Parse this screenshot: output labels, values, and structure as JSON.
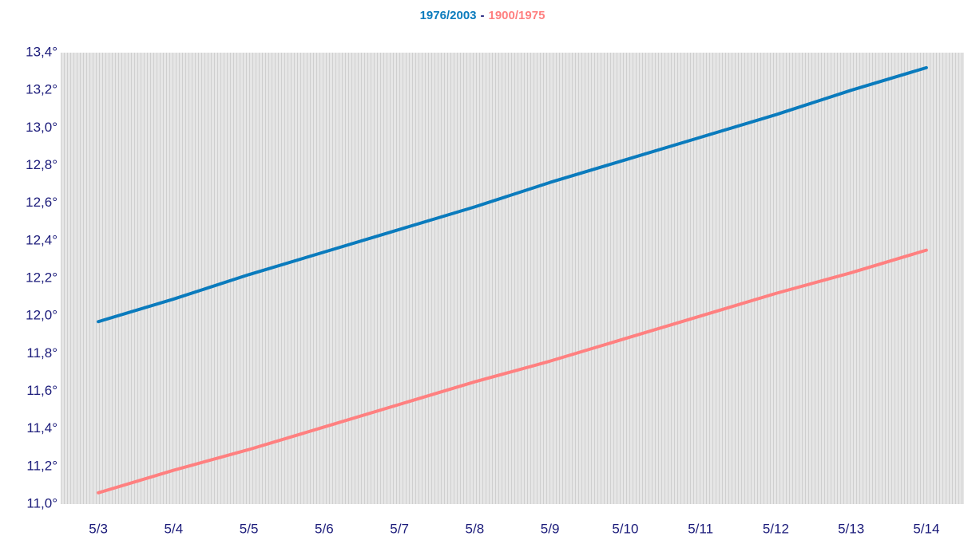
{
  "chart_data": {
    "type": "line",
    "legend_separator": "-",
    "categories": [
      "5/3",
      "5/4",
      "5/5",
      "5/6",
      "5/7",
      "5/8",
      "5/9",
      "5/10",
      "5/11",
      "5/12",
      "5/13",
      "5/14"
    ],
    "series": [
      {
        "name": "1976/2003",
        "color": "#0a7bbd",
        "values": [
          11.97,
          12.09,
          12.22,
          12.34,
          12.46,
          12.58,
          12.71,
          12.83,
          12.95,
          13.07,
          13.2,
          13.32
        ]
      },
      {
        "name": "1900/1975",
        "color": "#ff8080",
        "values": [
          11.06,
          11.18,
          11.29,
          11.41,
          11.53,
          11.65,
          11.76,
          11.88,
          12.0,
          12.12,
          12.23,
          12.35
        ]
      }
    ],
    "ylim": [
      11.0,
      13.4
    ],
    "yticks": [
      {
        "value": 11.0,
        "label": "11,0°"
      },
      {
        "value": 11.2,
        "label": "11,2°"
      },
      {
        "value": 11.4,
        "label": "11,4°"
      },
      {
        "value": 11.6,
        "label": "11,6°"
      },
      {
        "value": 11.8,
        "label": "11,8°"
      },
      {
        "value": 12.0,
        "label": "12,0°"
      },
      {
        "value": 12.2,
        "label": "12,2°"
      },
      {
        "value": 12.4,
        "label": "12,4°"
      },
      {
        "value": 12.6,
        "label": "12,6°"
      },
      {
        "value": 12.8,
        "label": "12,8°"
      },
      {
        "value": 13.0,
        "label": "13,0°"
      },
      {
        "value": 13.2,
        "label": "13,2°"
      },
      {
        "value": 13.4,
        "label": "13,4°"
      }
    ]
  }
}
